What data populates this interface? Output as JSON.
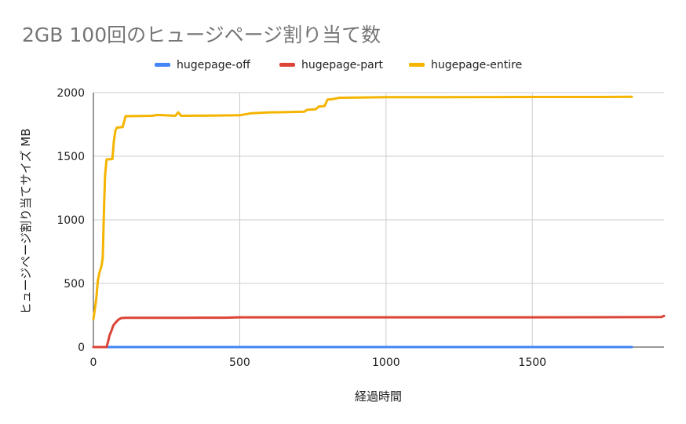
{
  "chart_data": {
    "type": "line",
    "title": "2GB 100回のヒュージページ割り当て数",
    "xlabel": "経過時間",
    "ylabel": "ヒュージページ割り当てサイズ MB",
    "xlim": [
      0,
      1950
    ],
    "ylim": [
      0,
      2000
    ],
    "xticks": [
      0,
      500,
      1000,
      1500
    ],
    "yticks": [
      0,
      500,
      1000,
      1500,
      2000
    ],
    "grid": true,
    "legend_position": "top",
    "series": [
      {
        "name": "hugepage-off",
        "color": "#4285f4",
        "points": [
          [
            0,
            0
          ],
          [
            1840,
            0
          ]
        ]
      },
      {
        "name": "hugepage-part",
        "color": "#db4437",
        "points": [
          [
            0,
            0
          ],
          [
            45,
            0
          ],
          [
            50,
            40
          ],
          [
            55,
            90
          ],
          [
            62,
            130
          ],
          [
            68,
            170
          ],
          [
            75,
            190
          ],
          [
            85,
            215
          ],
          [
            95,
            228
          ],
          [
            110,
            230
          ],
          [
            300,
            230
          ],
          [
            450,
            231
          ],
          [
            500,
            234
          ],
          [
            700,
            234
          ],
          [
            1000,
            234
          ],
          [
            1500,
            234
          ],
          [
            1940,
            236
          ],
          [
            1950,
            245
          ]
        ]
      },
      {
        "name": "hugepage-entire",
        "color": "#f4b400",
        "points": [
          [
            0,
            220
          ],
          [
            10,
            380
          ],
          [
            15,
            520
          ],
          [
            20,
            580
          ],
          [
            28,
            640
          ],
          [
            32,
            700
          ],
          [
            37,
            1150
          ],
          [
            40,
            1350
          ],
          [
            45,
            1475
          ],
          [
            65,
            1478
          ],
          [
            70,
            1620
          ],
          [
            75,
            1700
          ],
          [
            80,
            1725
          ],
          [
            100,
            1730
          ],
          [
            110,
            1815
          ],
          [
            200,
            1818
          ],
          [
            220,
            1825
          ],
          [
            280,
            1818
          ],
          [
            290,
            1845
          ],
          [
            300,
            1818
          ],
          [
            400,
            1820
          ],
          [
            500,
            1822
          ],
          [
            540,
            1838
          ],
          [
            600,
            1845
          ],
          [
            650,
            1846
          ],
          [
            720,
            1850
          ],
          [
            730,
            1865
          ],
          [
            760,
            1870
          ],
          [
            770,
            1890
          ],
          [
            790,
            1895
          ],
          [
            800,
            1945
          ],
          [
            820,
            1950
          ],
          [
            840,
            1960
          ],
          [
            900,
            1962
          ],
          [
            1000,
            1965
          ],
          [
            1200,
            1965
          ],
          [
            1500,
            1966
          ],
          [
            1700,
            1966
          ],
          [
            1840,
            1968
          ]
        ]
      }
    ]
  }
}
